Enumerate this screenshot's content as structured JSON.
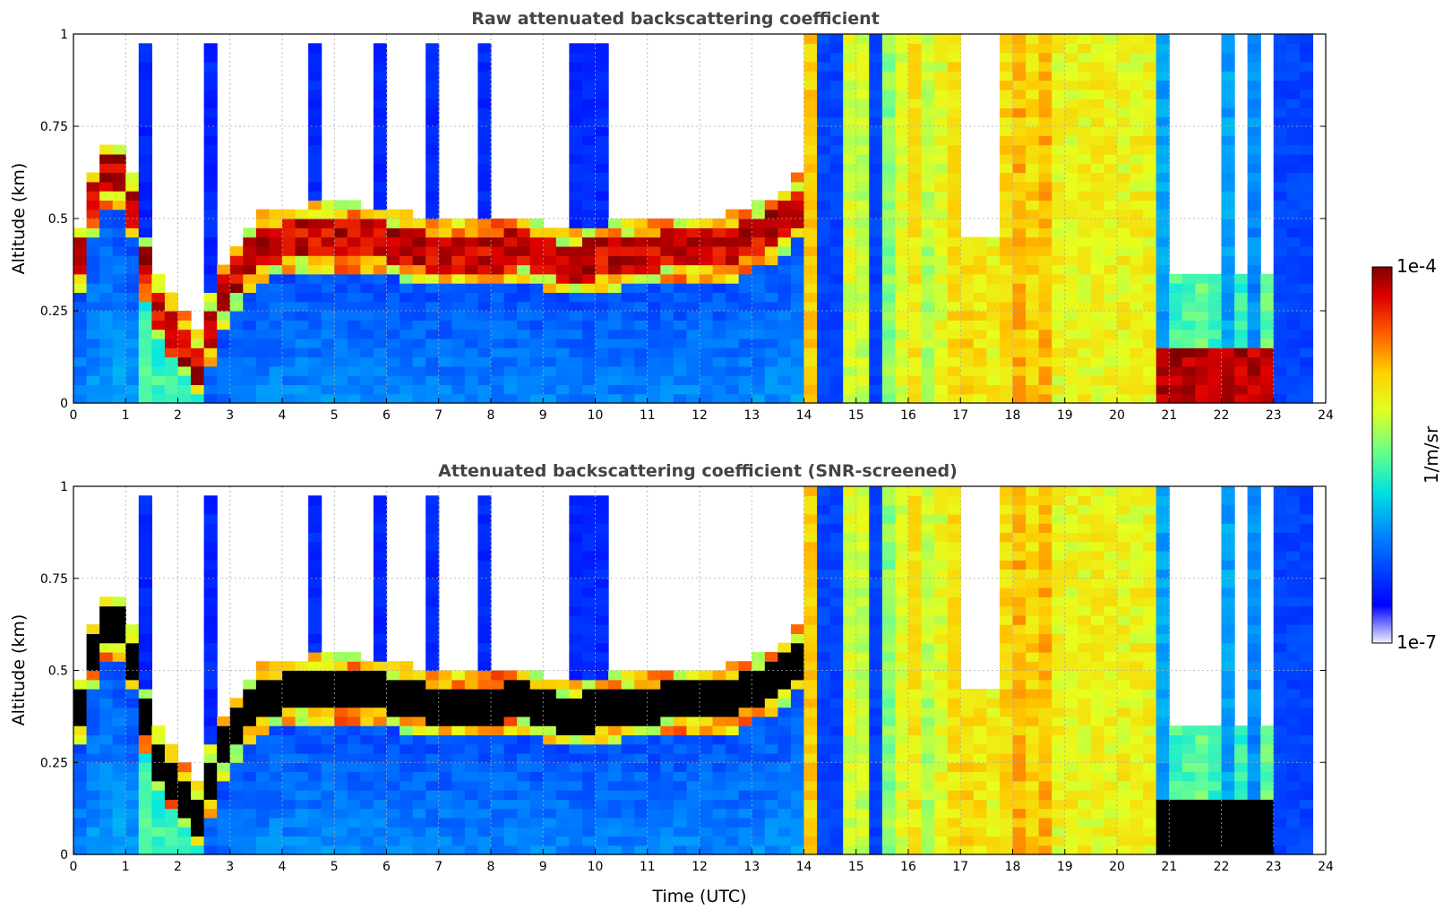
{
  "chart_data": [
    {
      "type": "heatmap",
      "title": "Raw attenuated backscattering coefficient",
      "xlabel": "",
      "ylabel": "Altitude (km)",
      "xlim": [
        0,
        24
      ],
      "ylim": [
        0,
        1
      ],
      "x_ticks": [
        "0",
        "1",
        "2",
        "3",
        "4",
        "5",
        "6",
        "7",
        "8",
        "9",
        "10",
        "11",
        "12",
        "13",
        "14",
        "15",
        "16",
        "17",
        "18",
        "19",
        "20",
        "21",
        "22",
        "23",
        "24"
      ],
      "y_ticks": [
        "0",
        "0.25",
        "0.5",
        "0.75",
        "1"
      ],
      "grid": true,
      "screened": false
    },
    {
      "type": "heatmap",
      "title": "Attenuated backscattering coefficient (SNR-screened)",
      "xlabel": "Time (UTC)",
      "ylabel": "Altitude (km)",
      "xlim": [
        0,
        24
      ],
      "ylim": [
        0,
        1
      ],
      "x_ticks": [
        "0",
        "1",
        "2",
        "3",
        "4",
        "5",
        "6",
        "7",
        "8",
        "9",
        "10",
        "11",
        "12",
        "13",
        "14",
        "15",
        "16",
        "17",
        "18",
        "19",
        "20",
        "21",
        "22",
        "23",
        "24"
      ],
      "y_ticks": [
        "0",
        "0.25",
        "0.5",
        "0.75",
        "1"
      ],
      "grid": true,
      "screened": true
    }
  ],
  "colorbar": {
    "label": "1/m/sr",
    "max_label": "1e-4",
    "min_label": "1e-7",
    "colormap": "jet (log scale)"
  }
}
